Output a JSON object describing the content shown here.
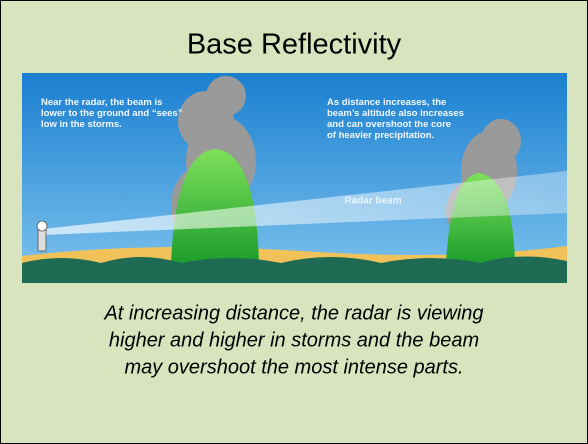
{
  "slide": {
    "title": "Base Reflectivity",
    "illustration": {
      "near_label": [
        "Near the radar, the beam is",
        "lower to the ground and “sees”",
        "low in the storms."
      ],
      "far_label": [
        "As distance increases, the",
        "beam’s altitude also increases",
        "and can overshoot the core",
        "of heavier precipitation."
      ],
      "beam_label": "Radar beam"
    },
    "caption": [
      "At increasing distance, the radar is viewing",
      "higher and higher in storms and the beam",
      "may overshoot the most intense parts."
    ]
  }
}
